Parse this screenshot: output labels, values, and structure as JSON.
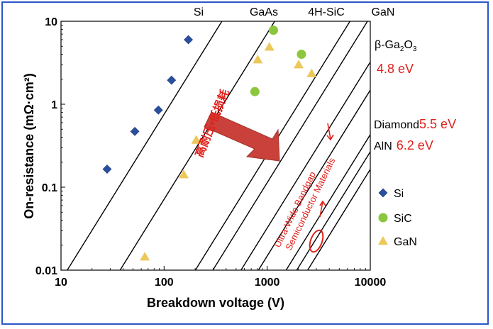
{
  "chart_data": {
    "type": "scatter",
    "xscale": "log",
    "yscale": "log",
    "xlim": [
      10,
      10000
    ],
    "ylim": [
      0.01,
      10
    ],
    "xlabel": "Breakdown voltage (V)",
    "ylabel": "On-resistance (mΩ·cm²)",
    "x_ticks": [
      10,
      100,
      1000,
      10000
    ],
    "x_tick_labels": [
      "10",
      "100",
      "1000",
      "10000"
    ],
    "y_ticks": [
      0.01,
      0.1,
      1,
      10
    ],
    "y_tick_labels": [
      "0.01",
      "0.1",
      "1",
      "10"
    ],
    "series": [
      {
        "name": "Si",
        "marker": "diamond",
        "color": "#2b4f9e",
        "points": [
          [
            28,
            0.165
          ],
          [
            52,
            0.47
          ],
          [
            88,
            0.85
          ],
          [
            118,
            1.95
          ],
          [
            172,
            6.0
          ]
        ]
      },
      {
        "name": "SiC",
        "marker": "circle",
        "color": "#8cc63f",
        "points": [
          [
            760,
            1.42
          ],
          [
            1150,
            7.8
          ],
          [
            2150,
            4.0
          ]
        ]
      },
      {
        "name": "GaN",
        "marker": "triangle",
        "color": "#ecc85a",
        "points": [
          [
            65,
            0.0145
          ],
          [
            155,
            0.142
          ],
          [
            205,
            0.37
          ],
          [
            810,
            3.45
          ],
          [
            1050,
            4.9
          ],
          [
            2020,
            3.0
          ],
          [
            2700,
            2.35
          ]
        ]
      }
    ],
    "limit_lines": [
      {
        "name": "Si",
        "label": "Si",
        "label_position": "top",
        "x_at_ymin": 11.5
      },
      {
        "name": "GaAs",
        "label": "GaAs",
        "label_position": "top",
        "x_at_ymin": 37.4
      },
      {
        "name": "4H-SiC",
        "label": "4H-SiC",
        "label_position": "top",
        "x_at_ymin": 201
      },
      {
        "name": "GaN",
        "label": "GaN",
        "label_position": "top",
        "x_at_ymin": 297
      },
      {
        "name": "β-Ga2O3",
        "label_position": "right",
        "x_at_ymin": 557
      },
      {
        "name": "Diamond",
        "label_position": "right",
        "x_at_ymin": 822
      },
      {
        "name": "AlN",
        "label_position": "right",
        "x_at_ymin": 1525
      },
      {
        "name": "UWBG-extra-1",
        "label_position": "none",
        "x_at_ymin": 1934
      },
      {
        "name": "UWBG-extra-2",
        "label_position": "none",
        "x_at_ymin": 2468
      }
    ],
    "right_labels": [
      {
        "material": "β-Ga",
        "sub": "2",
        "tail": "O",
        "sub2": "3",
        "bandgap": "4.8 eV"
      },
      {
        "material": "Diamond",
        "bandgap": "5.5 eV"
      },
      {
        "material": "AlN",
        "bandgap": "6.2 eV"
      }
    ],
    "annotations": {
      "arrow_text": "高耐压•低损耗",
      "uwb_line1": "Ultra-Wide Bandgap",
      "uwb_line2": "Semiconductor Materials"
    },
    "legend": {
      "position": "right",
      "items": [
        {
          "label": "Si",
          "marker": "diamond"
        },
        {
          "label": "SiC",
          "marker": "circle"
        },
        {
          "label": "GaN",
          "marker": "triangle"
        }
      ]
    },
    "colors": {
      "bandgap_text": "#e0201b",
      "annotation": "#e0201b",
      "arrow": "#c9413a",
      "frame": "#2a56c8"
    }
  }
}
